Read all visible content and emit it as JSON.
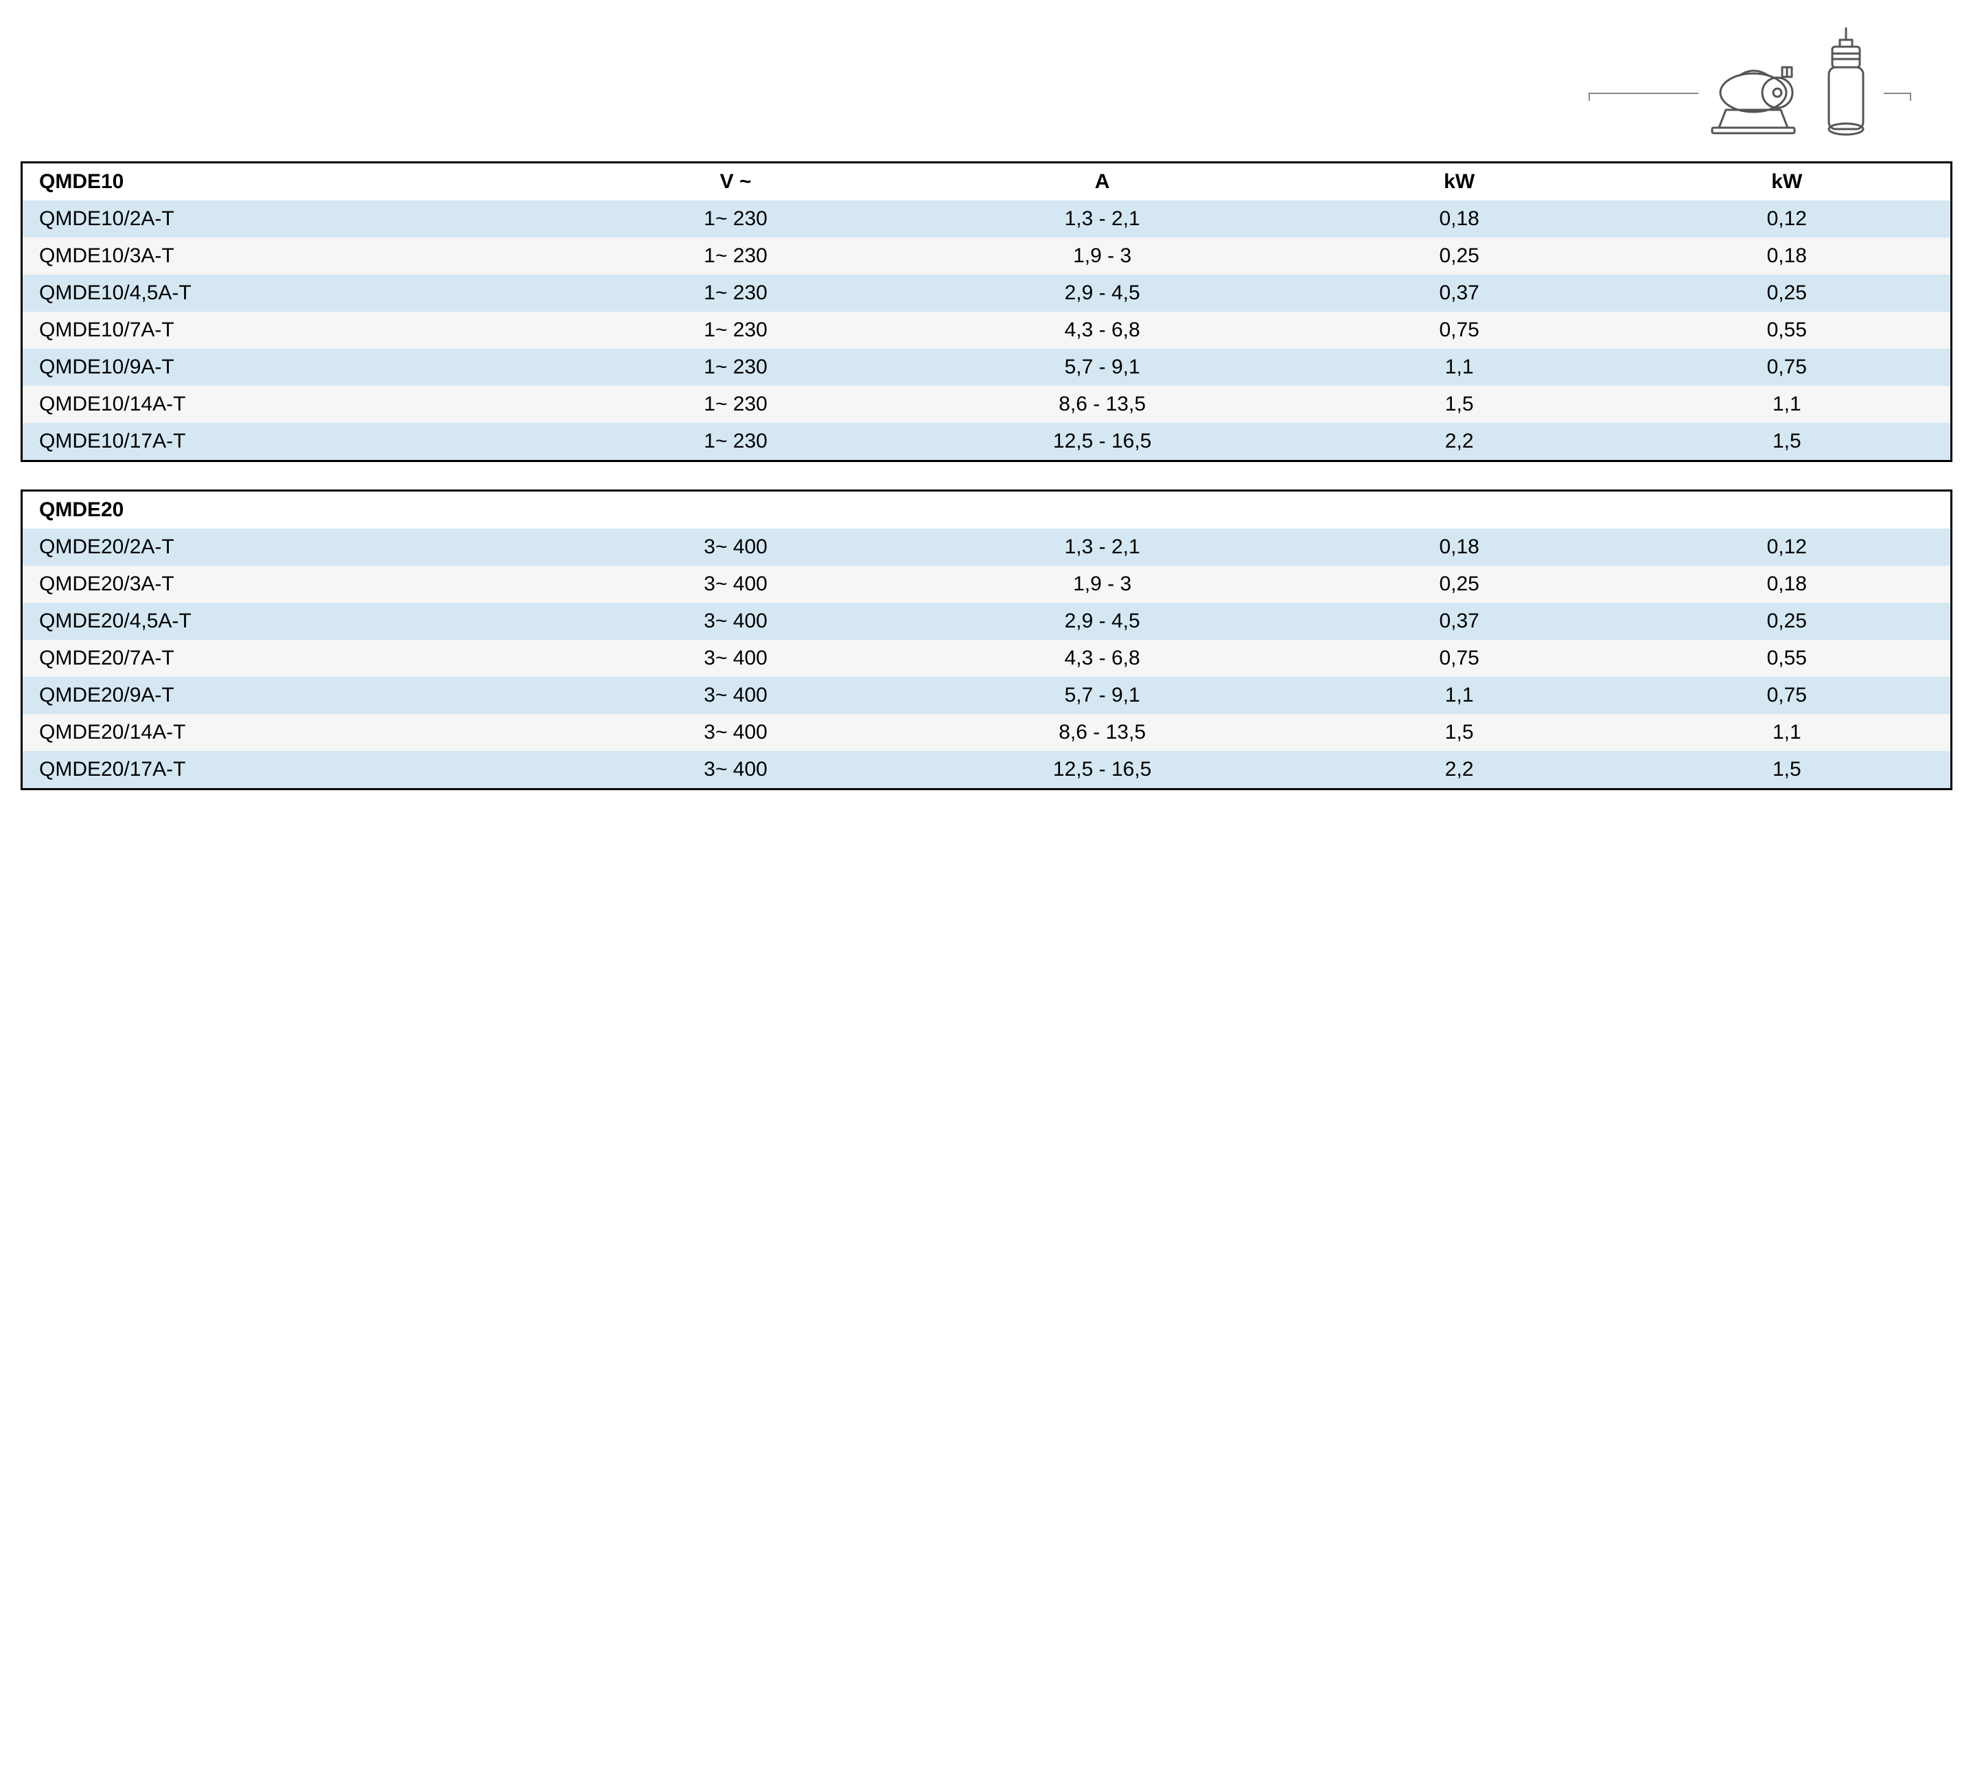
{
  "colors": {
    "row_odd": "#d5e7f2",
    "row_even": "#f6f6f6",
    "border": "#000000",
    "icon_stroke": "#555555",
    "text": "#000000"
  },
  "typography": {
    "font_family": "Helvetica, Arial, sans-serif",
    "base_fontsize_pt": 22,
    "header_weight": "bold"
  },
  "columns": {
    "model": "",
    "voltage": "V ~",
    "current": "A",
    "kw1": "kW",
    "kw2": "kW"
  },
  "table1": {
    "title": "QMDE10",
    "rows": [
      {
        "model": "QMDE10/2A-T",
        "v": "1~ 230",
        "a": "1,3 - 2,1",
        "kw1": "0,18",
        "kw2": "0,12"
      },
      {
        "model": "QMDE10/3A-T",
        "v": "1~ 230",
        "a": "1,9 - 3",
        "kw1": "0,25",
        "kw2": "0,18"
      },
      {
        "model": "QMDE10/4,5A-T",
        "v": "1~ 230",
        "a": "2,9 - 4,5",
        "kw1": "0,37",
        "kw2": "0,25"
      },
      {
        "model": "QMDE10/7A-T",
        "v": "1~ 230",
        "a": "4,3 - 6,8",
        "kw1": "0,75",
        "kw2": "0,55"
      },
      {
        "model": "QMDE10/9A-T",
        "v": "1~ 230",
        "a": "5,7 - 9,1",
        "kw1": "1,1",
        "kw2": "0,75"
      },
      {
        "model": "QMDE10/14A-T",
        "v": "1~ 230",
        "a": "8,6 - 13,5",
        "kw1": "1,5",
        "kw2": "1,1"
      },
      {
        "model": "QMDE10/17A-T",
        "v": "1~ 230",
        "a": "12,5 - 16,5",
        "kw1": "2,2",
        "kw2": "1,5"
      }
    ]
  },
  "table2": {
    "title": "QMDE20",
    "rows": [
      {
        "model": "QMDE20/2A-T",
        "v": "3~ 400",
        "a": "1,3 - 2,1",
        "kw1": "0,18",
        "kw2": "0,12"
      },
      {
        "model": "QMDE20/3A-T",
        "v": "3~ 400",
        "a": "1,9 - 3",
        "kw1": "0,25",
        "kw2": "0,18"
      },
      {
        "model": "QMDE20/4,5A-T",
        "v": "3~ 400",
        "a": "2,9 - 4,5",
        "kw1": "0,37",
        "kw2": "0,25"
      },
      {
        "model": "QMDE20/7A-T",
        "v": "3~ 400",
        "a": "4,3 - 6,8",
        "kw1": "0,75",
        "kw2": "0,55"
      },
      {
        "model": "QMDE20/9A-T",
        "v": "3~ 400",
        "a": "5,7 - 9,1",
        "kw1": "1,1",
        "kw2": "0,75"
      },
      {
        "model": "QMDE20/14A-T",
        "v": "3~ 400",
        "a": "8,6 - 13,5",
        "kw1": "1,5",
        "kw2": "1,1"
      },
      {
        "model": "QMDE20/17A-T",
        "v": "3~ 400",
        "a": "12,5 - 16,5",
        "kw1": "2,2",
        "kw2": "1,5"
      }
    ]
  }
}
